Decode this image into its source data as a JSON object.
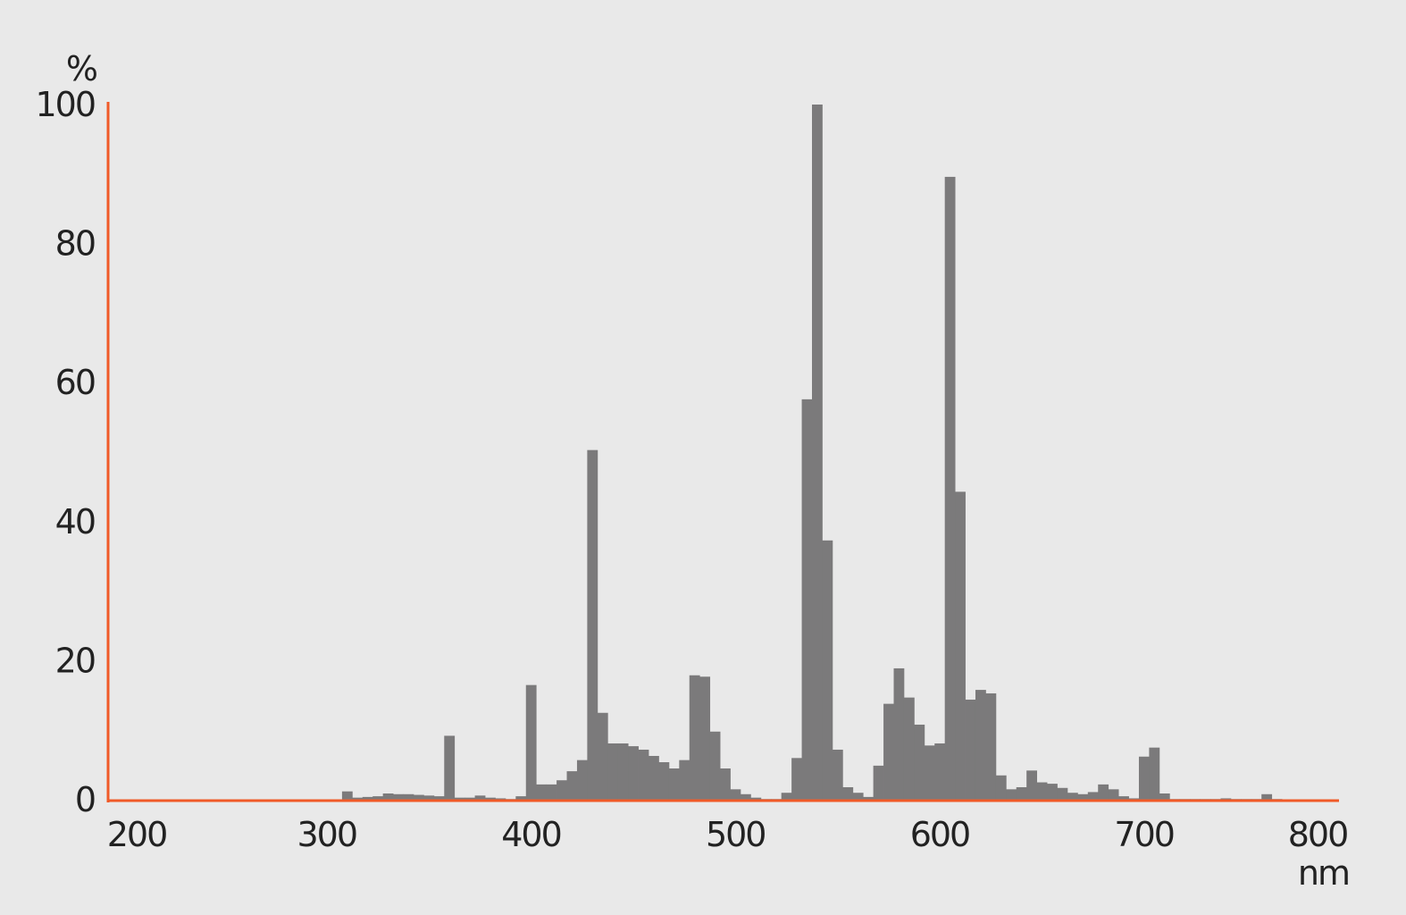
{
  "chart_data": {
    "type": "bar",
    "title": "",
    "xlabel": "nm",
    "ylabel": "%",
    "xlim": [
      193,
      795
    ],
    "ylim": [
      0,
      100
    ],
    "grid": false,
    "bar_width_nm": 5,
    "x_ticks": [
      200,
      300,
      400,
      500,
      600,
      700,
      800
    ],
    "y_ticks": [
      0,
      20,
      40,
      60,
      80,
      100
    ],
    "colors": {
      "bars": "#7b7a7b",
      "axes": "#f05a28",
      "background": "#e9e9e9"
    },
    "x": [
      310,
      315,
      320,
      325,
      330,
      335,
      340,
      345,
      350,
      355,
      360,
      365,
      370,
      375,
      380,
      385,
      390,
      395,
      400,
      405,
      410,
      415,
      420,
      425,
      430,
      435,
      440,
      445,
      450,
      455,
      460,
      465,
      470,
      475,
      480,
      485,
      490,
      495,
      500,
      505,
      510,
      515,
      520,
      525,
      530,
      535,
      540,
      545,
      550,
      555,
      560,
      565,
      570,
      575,
      580,
      585,
      590,
      595,
      600,
      605,
      610,
      615,
      620,
      625,
      630,
      635,
      640,
      645,
      650,
      655,
      660,
      665,
      670,
      675,
      680,
      685,
      690,
      695,
      700,
      705,
      710,
      715,
      720,
      725,
      730,
      735,
      740,
      745,
      750,
      755,
      760,
      765
    ],
    "values": [
      1.2,
      0.3,
      0.4,
      0.5,
      0.9,
      0.8,
      0.8,
      0.7,
      0.6,
      0.5,
      9.2,
      0.3,
      0.3,
      0.6,
      0.3,
      0.2,
      0.1,
      0.5,
      16.5,
      2.2,
      2.2,
      2.8,
      4.1,
      5.7,
      50.3,
      12.5,
      8.1,
      8.1,
      7.7,
      7.2,
      6.3,
      5.4,
      4.5,
      5.7,
      17.9,
      17.7,
      9.8,
      4.5,
      1.5,
      0.8,
      0.3,
      0.1,
      0.1,
      1.0,
      6.0,
      57.6,
      100,
      37.3,
      7.2,
      1.8,
      1.0,
      0.4,
      4.9,
      13.8,
      18.9,
      14.7,
      10.8,
      7.8,
      8.1,
      89.6,
      44.3,
      14.4,
      15.8,
      15.3,
      3.5,
      1.5,
      1.8,
      4.2,
      2.5,
      2.3,
      1.7,
      1.0,
      0.8,
      1.1,
      2.2,
      1.5,
      0.5,
      0.2,
      6.2,
      7.5,
      0.9,
      0.1,
      0.1,
      0.1,
      0.1,
      0.1,
      0.2,
      0.1,
      0.1,
      0.1,
      0.8,
      0.1
    ]
  }
}
